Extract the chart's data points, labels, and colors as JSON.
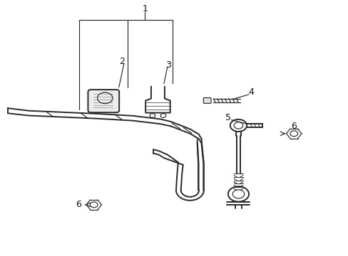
{
  "bg_color": "#ffffff",
  "line_color": "#2a2a2a",
  "label_color": "#111111",
  "lw_main": 1.4,
  "lw_thin": 0.85,
  "font_size": 9
}
